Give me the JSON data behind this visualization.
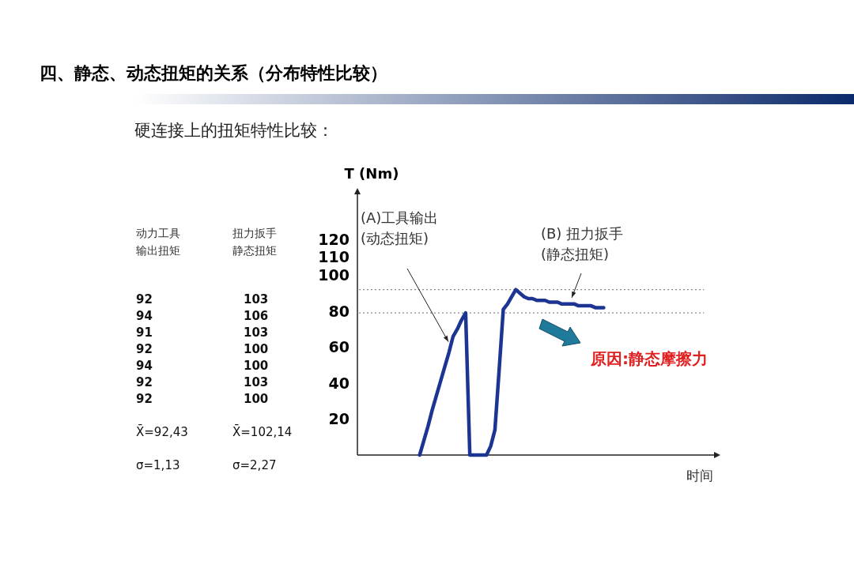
{
  "chart_data": {
    "type": "line",
    "title": "四、静态、动态扭矩的关系（分布特性比较）",
    "subtitle": "硬连接上的扭矩特性比较：",
    "ylabel": "T (Nm)",
    "categories": [
      null,
      null,
      null,
      null,
      null,
      null,
      null,
      null,
      null,
      null,
      null,
      null,
      null,
      null,
      null,
      null,
      null,
      null,
      null,
      null,
      null,
      null,
      null,
      null,
      null,
      null,
      null,
      null,
      null,
      null,
      null,
      null,
      null,
      null,
      null,
      null,
      null,
      null,
      null,
      null,
      null,
      null,
      null,
      null,
      null,
      null,
      null,
      null,
      null,
      null,
      null,
      null,
      null,
      null,
      null,
      null,
      null,
      null,
      null,
      null,
      null,
      null,
      null,
      null,
      null,
      null,
      null,
      null,
      null,
      null,
      null,
      null,
      null,
      null,
      null,
      null,
      null,
      null,
      null,
      null,
      null,
      null,
      null
    ],
    "series": [
      {
        "color": "#1c3593",
        "values": [
          null,
          null,
          null,
          null,
          null,
          null,
          null,
          null,
          null,
          null,
          null,
          null,
          null,
          null,
          0,
          8,
          16,
          25,
          33,
          41,
          49,
          57,
          66,
          70,
          75,
          79,
          0,
          0,
          0,
          0,
          0,
          5,
          14,
          47,
          81,
          84,
          88,
          92,
          90,
          88,
          87,
          87,
          86,
          86,
          86,
          85,
          85,
          85,
          84,
          84,
          84,
          84,
          83,
          83,
          83,
          83,
          82,
          82,
          82,
          null,
          null,
          null,
          null,
          null,
          null,
          null,
          null,
          null,
          null,
          null,
          null,
          null,
          null,
          null,
          null,
          null,
          null,
          null,
          null,
          null,
          null,
          null,
          null
        ]
      }
    ],
    "ylim": [
      0,
      145
    ],
    "yticks": [
      20,
      40,
      60,
      80,
      100,
      110,
      120
    ],
    "grid": false,
    "marker": "none",
    "line_style": "solid",
    "ref_lines": [
      {
        "axis": "y",
        "value": 92,
        "color": "#888888",
        "line_style": "dotted"
      },
      {
        "axis": "y",
        "value": 79,
        "color": "#888888",
        "line_style": "dotted"
      }
    ],
    "annotations": [
      "(A)工具输出\n(动态扭矩)",
      "(B) 扭力扳手\n(静态扭矩)",
      "原因:静态摩擦力",
      "动力工具输出扭矩",
      "扭力扳手静态扭矩",
      "92\n94\n91\n92\n94\n92\n92",
      "103\n106\n103\n100\n100\n103\n100",
      "X̄=92,43",
      "X̄=102,14",
      "σ=1,13",
      "σ=2,27",
      "时间"
    ]
  }
}
